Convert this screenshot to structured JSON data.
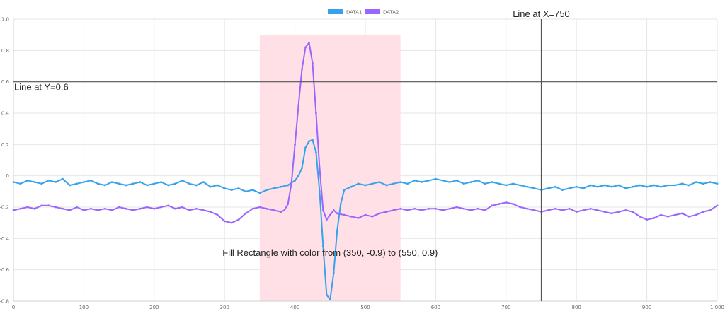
{
  "chart_data": {
    "type": "line",
    "xlim": [
      0,
      1000
    ],
    "ylim": [
      -0.8,
      1.0
    ],
    "x_ticks": [
      0,
      100,
      200,
      300,
      400,
      500,
      600,
      700,
      800,
      900,
      1000
    ],
    "x_tick_labels": [
      "0",
      "100",
      "200",
      "300",
      "400",
      "500",
      "600",
      "700",
      "800",
      "900",
      "1,000"
    ],
    "y_ticks": [
      1.0,
      0.8,
      0.6,
      0.4,
      0.2,
      0,
      -0.2,
      -0.4,
      -0.6,
      -0.8
    ],
    "y_tick_labels": [
      "1.0",
      "0.8",
      "0.6",
      "0.4",
      "0.2",
      "0",
      "-0.2",
      "-0.4",
      "-0.6",
      "-0.8"
    ],
    "grid": true,
    "legend": "top-center",
    "series": [
      {
        "name": "DATA1",
        "color": "#36a2eb",
        "x": [
          0,
          10,
          20,
          30,
          40,
          50,
          60,
          70,
          80,
          90,
          100,
          110,
          120,
          130,
          140,
          150,
          160,
          170,
          180,
          190,
          200,
          210,
          220,
          230,
          240,
          250,
          260,
          270,
          280,
          290,
          300,
          310,
          320,
          330,
          340,
          350,
          360,
          370,
          380,
          390,
          400,
          405,
          410,
          415,
          420,
          425,
          430,
          435,
          440,
          445,
          450,
          455,
          460,
          465,
          470,
          480,
          490,
          500,
          510,
          520,
          530,
          540,
          550,
          560,
          570,
          580,
          590,
          600,
          610,
          620,
          630,
          640,
          650,
          660,
          670,
          680,
          690,
          700,
          710,
          720,
          730,
          740,
          750,
          760,
          770,
          780,
          790,
          800,
          810,
          820,
          830,
          840,
          850,
          860,
          870,
          880,
          890,
          900,
          910,
          920,
          930,
          940,
          950,
          960,
          970,
          980,
          990,
          1000
        ],
        "y": [
          -0.04,
          -0.05,
          -0.03,
          -0.04,
          -0.05,
          -0.03,
          -0.04,
          -0.02,
          -0.06,
          -0.05,
          -0.04,
          -0.03,
          -0.05,
          -0.06,
          -0.04,
          -0.05,
          -0.06,
          -0.05,
          -0.04,
          -0.06,
          -0.05,
          -0.04,
          -0.06,
          -0.05,
          -0.03,
          -0.05,
          -0.06,
          -0.04,
          -0.07,
          -0.06,
          -0.08,
          -0.09,
          -0.08,
          -0.1,
          -0.09,
          -0.11,
          -0.09,
          -0.08,
          -0.07,
          -0.06,
          -0.03,
          0.0,
          0.05,
          0.18,
          0.22,
          0.23,
          0.15,
          -0.1,
          -0.45,
          -0.76,
          -0.79,
          -0.62,
          -0.35,
          -0.18,
          -0.09,
          -0.07,
          -0.05,
          -0.06,
          -0.05,
          -0.04,
          -0.06,
          -0.05,
          -0.04,
          -0.05,
          -0.03,
          -0.04,
          -0.03,
          -0.02,
          -0.03,
          -0.04,
          -0.03,
          -0.05,
          -0.04,
          -0.03,
          -0.05,
          -0.04,
          -0.05,
          -0.06,
          -0.05,
          -0.06,
          -0.07,
          -0.08,
          -0.09,
          -0.08,
          -0.07,
          -0.09,
          -0.08,
          -0.07,
          -0.08,
          -0.06,
          -0.07,
          -0.06,
          -0.07,
          -0.06,
          -0.08,
          -0.07,
          -0.06,
          -0.07,
          -0.06,
          -0.07,
          -0.06,
          -0.06,
          -0.05,
          -0.06,
          -0.04,
          -0.05,
          -0.04,
          -0.05
        ]
      },
      {
        "name": "DATA2",
        "color": "#9966ff",
        "x": [
          0,
          10,
          20,
          30,
          40,
          50,
          60,
          70,
          80,
          90,
          100,
          110,
          120,
          130,
          140,
          150,
          160,
          170,
          180,
          190,
          200,
          210,
          220,
          230,
          240,
          250,
          260,
          270,
          280,
          290,
          300,
          310,
          320,
          330,
          340,
          350,
          360,
          370,
          380,
          385,
          390,
          395,
          400,
          405,
          410,
          415,
          420,
          425,
          430,
          435,
          440,
          445,
          450,
          455,
          460,
          470,
          480,
          490,
          500,
          510,
          520,
          530,
          540,
          550,
          560,
          570,
          580,
          590,
          600,
          610,
          620,
          630,
          640,
          650,
          660,
          670,
          680,
          690,
          700,
          710,
          720,
          730,
          740,
          750,
          760,
          770,
          780,
          790,
          800,
          810,
          820,
          830,
          840,
          850,
          860,
          870,
          880,
          890,
          900,
          910,
          920,
          930,
          940,
          950,
          960,
          970,
          980,
          990,
          1000
        ],
        "y": [
          -0.22,
          -0.21,
          -0.2,
          -0.21,
          -0.19,
          -0.19,
          -0.2,
          -0.21,
          -0.22,
          -0.2,
          -0.22,
          -0.21,
          -0.22,
          -0.21,
          -0.22,
          -0.2,
          -0.21,
          -0.22,
          -0.21,
          -0.2,
          -0.21,
          -0.2,
          -0.19,
          -0.21,
          -0.2,
          -0.22,
          -0.21,
          -0.22,
          -0.23,
          -0.25,
          -0.29,
          -0.3,
          -0.28,
          -0.24,
          -0.21,
          -0.2,
          -0.21,
          -0.22,
          -0.23,
          -0.22,
          -0.18,
          -0.05,
          0.2,
          0.45,
          0.68,
          0.82,
          0.85,
          0.72,
          0.4,
          0.05,
          -0.22,
          -0.28,
          -0.25,
          -0.22,
          -0.24,
          -0.25,
          -0.26,
          -0.27,
          -0.25,
          -0.26,
          -0.24,
          -0.23,
          -0.22,
          -0.21,
          -0.22,
          -0.21,
          -0.22,
          -0.21,
          -0.21,
          -0.22,
          -0.21,
          -0.2,
          -0.21,
          -0.22,
          -0.21,
          -0.22,
          -0.19,
          -0.18,
          -0.17,
          -0.18,
          -0.2,
          -0.21,
          -0.22,
          -0.23,
          -0.22,
          -0.21,
          -0.22,
          -0.21,
          -0.23,
          -0.22,
          -0.21,
          -0.22,
          -0.23,
          -0.24,
          -0.23,
          -0.22,
          -0.23,
          -0.26,
          -0.28,
          -0.27,
          -0.25,
          -0.26,
          -0.25,
          -0.24,
          -0.26,
          -0.25,
          -0.23,
          -0.22,
          -0.19
        ]
      }
    ],
    "annotations": {
      "hline": {
        "y": 0.6,
        "label": "Line at Y=0.6",
        "color": "#555555"
      },
      "vline": {
        "x": 750,
        "label": "Line at X=750",
        "color": "#555555"
      },
      "rect": {
        "x1": 350,
        "y1": -0.9,
        "x2": 550,
        "y2": 0.9,
        "label": "Fill Rectangle with color from (350, -0.9) to (550, 0.9)",
        "color": "#ffdde3"
      }
    }
  }
}
